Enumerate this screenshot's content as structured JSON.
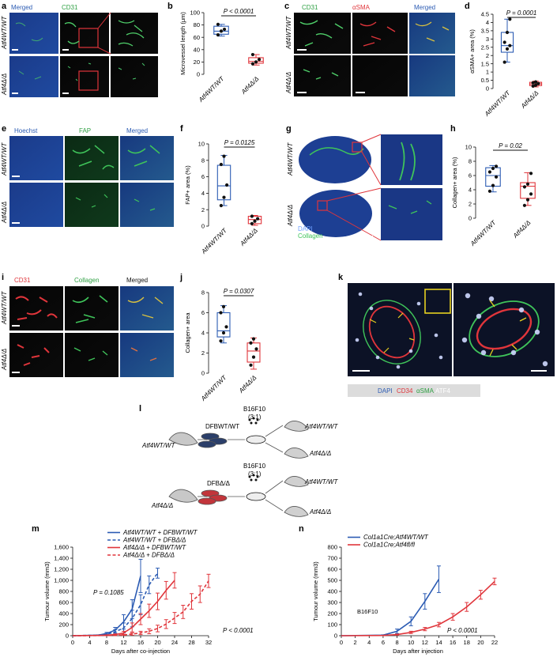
{
  "panels": {
    "a": {
      "letter": "a",
      "labels": [
        "Merged",
        "CD31"
      ],
      "rows": [
        "Atf4WT/WT",
        "Atf4Δ/Δ"
      ]
    },
    "b": {
      "letter": "b"
    },
    "c": {
      "letter": "c",
      "labels": [
        "CD31",
        "αSMA",
        "Merged"
      ],
      "rows": [
        "Atf4WT/WT",
        "Atf4Δ/Δ"
      ]
    },
    "d": {
      "letter": "d"
    },
    "e": {
      "letter": "e",
      "labels": [
        "Hoechst",
        "FAP",
        "Merged"
      ],
      "rows": [
        "Atf4WT/WT",
        "Atf4Δ/Δ"
      ]
    },
    "f": {
      "letter": "f"
    },
    "g": {
      "letter": "g",
      "rows": [
        "Atf4WT/WT",
        "Atf4Δ/Δ"
      ],
      "stain_labels": [
        "DAPI",
        "Collagen"
      ]
    },
    "h": {
      "letter": "h"
    },
    "i": {
      "letter": "i",
      "labels": [
        "CD31",
        "Collagen",
        "Merged"
      ],
      "rows": [
        "Atf4WT/WT",
        "Atf4Δ/Δ"
      ]
    },
    "j": {
      "letter": "j"
    },
    "k": {
      "letter": "k",
      "legend": [
        "DAPI",
        "CD34",
        "αSMA",
        "ATF4"
      ]
    },
    "l": {
      "letter": "l",
      "mouse_top": "Atf4WT/WT",
      "mouse_bottom": "Atf4Δ/Δ",
      "dfb_top": "DFBWT/WT",
      "dfb_bottom": "DFBΔ/Δ",
      "cells": "B16F10",
      "ratio": "(3:1)",
      "outcomes": [
        "Atf4WT/WT",
        "Atf4Δ/Δ",
        "Atf4WT/WT",
        "Atf4Δ/Δ"
      ]
    },
    "m": {
      "letter": "m"
    },
    "n": {
      "letter": "n"
    }
  },
  "colors": {
    "wt": "#2b5bb3",
    "ko": "#e0353b"
  },
  "chart_data": [
    {
      "id": "b",
      "type": "box",
      "ylabel": "Microvessel length (μm)",
      "ylim": [
        0,
        100
      ],
      "yticks": [
        0,
        20,
        40,
        60,
        80,
        100
      ],
      "categories": [
        "Atf4WT/WT",
        "Atf4Δ/Δ"
      ],
      "annotation": "P < 0.0001",
      "series": [
        {
          "points": [
            64,
            70,
            73,
            81
          ],
          "q1": 65,
          "median": 70,
          "q3": 78,
          "min": 62,
          "max": 81
        },
        {
          "points": [
            17,
            20,
            24,
            32
          ],
          "q1": 18,
          "median": 21,
          "q3": 27,
          "min": 15,
          "max": 32
        }
      ]
    },
    {
      "id": "d",
      "type": "box",
      "ylabel": "αSMA+ area (%)",
      "ylim": [
        0,
        4.5
      ],
      "yticks": [
        0,
        0.5,
        1.0,
        1.5,
        2.0,
        2.5,
        3.0,
        3.5,
        4.0,
        4.5
      ],
      "categories": [
        "Atf4WT/WT",
        "Atf4Δ/Δ"
      ],
      "annotation": "P = 0.0001",
      "series": [
        {
          "points": [
            1.6,
            2.4,
            2.6,
            2.8,
            3.4,
            4.2
          ],
          "q1": 2.2,
          "median": 2.6,
          "q3": 3.4,
          "min": 1.6,
          "max": 4.2
        },
        {
          "points": [
            0.15,
            0.2,
            0.3,
            0.35,
            0.4
          ],
          "q1": 0.18,
          "median": 0.28,
          "q3": 0.38,
          "min": 0.1,
          "max": 0.45
        }
      ]
    },
    {
      "id": "f",
      "type": "box",
      "ylabel": "FAP+ area (%)",
      "ylim": [
        0,
        10
      ],
      "yticks": [
        0,
        2,
        4,
        6,
        8,
        10
      ],
      "categories": [
        "Atf4WT/WT",
        "Atf4Δ/Δ"
      ],
      "annotation": "P = 0.0125",
      "series": [
        {
          "points": [
            2.5,
            3.5,
            5.0,
            7.5,
            8.5
          ],
          "q1": 3.2,
          "median": 4.9,
          "q3": 7.4,
          "min": 2.5,
          "max": 8.6
        },
        {
          "points": [
            0.3,
            0.6,
            0.9,
            1.2
          ],
          "q1": 0.3,
          "median": 0.8,
          "q3": 1.2,
          "min": 0.1,
          "max": 1.3
        }
      ]
    },
    {
      "id": "h",
      "type": "box",
      "ylabel": "Collagen+ area (%)",
      "ylim": [
        0,
        10
      ],
      "yticks": [
        0,
        2,
        4,
        6,
        8,
        10
      ],
      "categories": [
        "Atf4WT/WT",
        "Atf4Δ/Δ"
      ],
      "annotation": "P = 0.02",
      "series": [
        {
          "points": [
            3.8,
            4.6,
            5.8,
            6.5,
            7.0,
            7.3
          ],
          "q1": 4.5,
          "median": 6.0,
          "q3": 7.1,
          "min": 3.7,
          "max": 7.4
        },
        {
          "points": [
            1.8,
            2.6,
            3.4,
            4.4,
            4.8,
            6.3
          ],
          "q1": 2.8,
          "median": 4.5,
          "q3": 5.0,
          "min": 1.8,
          "max": 6.4
        }
      ]
    },
    {
      "id": "j",
      "type": "box",
      "ylabel": "Collagen+ area",
      "ylim": [
        0,
        8
      ],
      "yticks": [
        0,
        2,
        4,
        6,
        8
      ],
      "categories": [
        "Atf4WT/WT",
        "Atf4Δ/Δ"
      ],
      "annotation": "P = 0.0307",
      "series": [
        {
          "points": [
            3.2,
            4.0,
            4.6,
            6.0,
            6.6
          ],
          "q1": 3.6,
          "median": 4.2,
          "q3": 6.0,
          "min": 3.0,
          "max": 6.7
        },
        {
          "points": [
            0.8,
            1.6,
            2.4,
            3.0,
            3.4
          ],
          "q1": 1.1,
          "median": 2.2,
          "q3": 3.0,
          "min": 0.4,
          "max": 3.5
        }
      ]
    },
    {
      "id": "m",
      "type": "line",
      "xlabel": "Days after co-injection",
      "ylabel": "Tumour volume (mm3)",
      "xlim": [
        0,
        32
      ],
      "ylim": [
        0,
        1600
      ],
      "xticks": [
        0,
        4,
        8,
        12,
        16,
        20,
        24,
        28,
        32
      ],
      "yticks": [
        0,
        200,
        400,
        600,
        800,
        1000,
        1200,
        1400,
        1600
      ],
      "annotations": [
        "P = 0.1085",
        "P < 0.0001"
      ],
      "series": [
        {
          "name": "Atf4WT/WT + DFBWT/WT",
          "color": "#2b5bb3",
          "dash": false,
          "x": [
            0,
            6,
            8,
            10,
            12,
            14,
            16
          ],
          "y": [
            0,
            10,
            40,
            100,
            250,
            480,
            1080
          ],
          "err": [
            0,
            5,
            20,
            50,
            130,
            170,
            300
          ]
        },
        {
          "name": "Atf4WT/WT + DFBΔ/Δ",
          "color": "#2b5bb3",
          "dash": true,
          "x": [
            0,
            6,
            8,
            10,
            12,
            14,
            16,
            18,
            20
          ],
          "y": [
            0,
            10,
            25,
            70,
            140,
            310,
            560,
            920,
            1130
          ],
          "err": [
            0,
            5,
            15,
            40,
            90,
            150,
            180,
            160,
            90
          ]
        },
        {
          "name": "Atf4Δ/Δ + DFBWT/WT",
          "color": "#e0353b",
          "dash": false,
          "x": [
            0,
            6,
            8,
            10,
            12,
            14,
            16,
            18,
            20,
            22,
            24
          ],
          "y": [
            0,
            5,
            10,
            20,
            50,
            150,
            300,
            450,
            620,
            820,
            1000
          ],
          "err": [
            0,
            3,
            6,
            12,
            30,
            80,
            100,
            120,
            150,
            160,
            140
          ]
        },
        {
          "name": "Atf4Δ/Δ + DFBΔ/Δ",
          "color": "#e0353b",
          "dash": true,
          "x": [
            0,
            6,
            8,
            10,
            12,
            14,
            16,
            18,
            20,
            22,
            24,
            26,
            28,
            30,
            32
          ],
          "y": [
            0,
            3,
            5,
            8,
            15,
            30,
            50,
            80,
            130,
            210,
            320,
            430,
            620,
            750,
            990
          ],
          "err": [
            0,
            2,
            4,
            6,
            10,
            20,
            30,
            45,
            60,
            80,
            100,
            120,
            140,
            150,
            120
          ]
        }
      ]
    },
    {
      "id": "n",
      "type": "line",
      "xlabel": "Days after injection",
      "ylabel": "Tumour volume (mm3)",
      "xlim": [
        0,
        22
      ],
      "ylim": [
        0,
        800
      ],
      "xticks": [
        0,
        2,
        4,
        6,
        8,
        10,
        12,
        14,
        16,
        18,
        20,
        22
      ],
      "yticks": [
        0,
        100,
        200,
        300,
        400,
        500,
        600,
        700,
        800
      ],
      "annotations": [
        "B16F10",
        "P < 0.0001"
      ],
      "series": [
        {
          "name": "Col1a1Cre;Atf4WT/WT",
          "color": "#2b5bb3",
          "dash": false,
          "x": [
            0,
            6,
            8,
            10,
            12,
            14
          ],
          "y": [
            0,
            5,
            40,
            130,
            310,
            510
          ],
          "err": [
            0,
            3,
            20,
            40,
            70,
            120
          ]
        },
        {
          "name": "Col1a1Cre;Atf4fl/fl",
          "color": "#e0353b",
          "dash": false,
          "x": [
            0,
            6,
            8,
            10,
            12,
            14,
            16,
            18,
            20,
            22
          ],
          "y": [
            0,
            2,
            10,
            30,
            60,
            100,
            170,
            260,
            370,
            490
          ],
          "err": [
            0,
            2,
            5,
            10,
            15,
            20,
            30,
            40,
            40,
            30
          ]
        }
      ]
    }
  ]
}
